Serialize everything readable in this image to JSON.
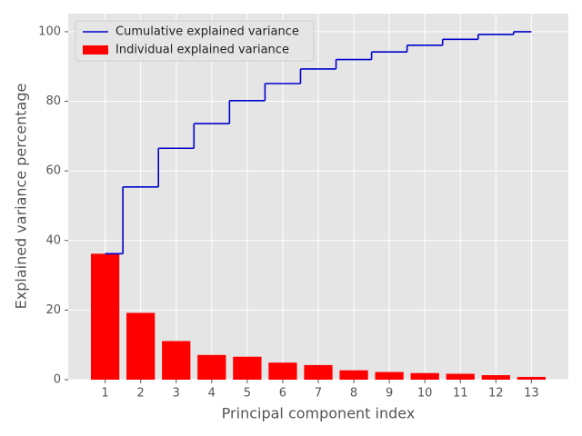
{
  "chart_data": {
    "type": "bar_step",
    "xlabel": "Principal component index",
    "ylabel": "Explained variance percentage",
    "x": [
      1,
      2,
      3,
      4,
      5,
      6,
      7,
      8,
      9,
      10,
      11,
      12,
      13
    ],
    "series": [
      {
        "name": "Individual explained variance",
        "color": "#ff0000",
        "kind": "bar",
        "values": [
          36.2,
          19.2,
          11.1,
          7.1,
          6.6,
          4.9,
          4.2,
          2.7,
          2.2,
          1.9,
          1.7,
          1.3,
          0.8
        ]
      },
      {
        "name": "Cumulative explained variance",
        "color": "#0000cc",
        "kind": "step",
        "values": [
          36.2,
          55.4,
          66.5,
          73.6,
          80.2,
          85.1,
          89.3,
          92.0,
          94.2,
          96.1,
          97.8,
          99.2,
          100
        ]
      }
    ],
    "xlim": [
      -0.04,
      14.04
    ],
    "xticks": [
      1,
      2,
      3,
      4,
      5,
      6,
      7,
      8,
      9,
      10,
      11,
      12,
      13
    ],
    "ylim": [
      0,
      105.2
    ],
    "yticks": [
      0,
      20,
      40,
      60,
      80,
      100
    ],
    "grid": true,
    "legend": "upper-left"
  }
}
